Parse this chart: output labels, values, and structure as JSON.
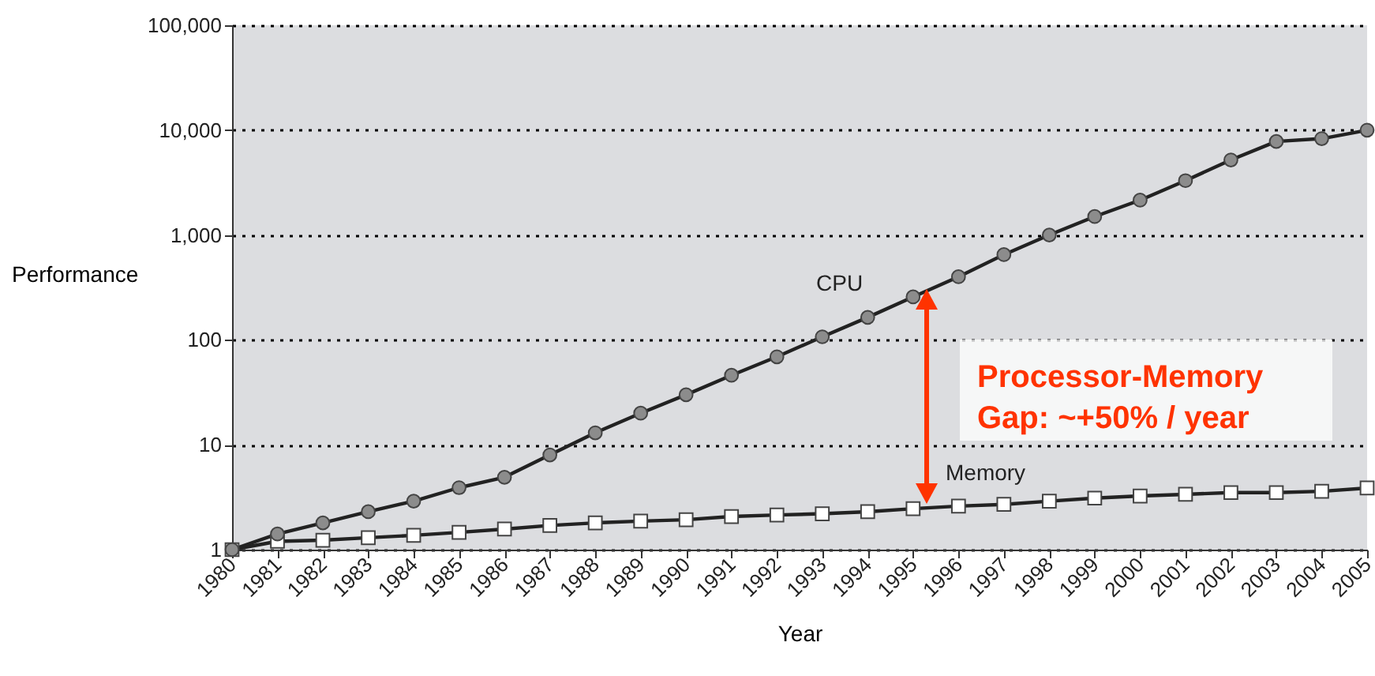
{
  "chart_data": {
    "type": "line",
    "xlabel": "Year",
    "ylabel": "Performance",
    "categories": [
      "1980",
      "1981",
      "1982",
      "1983",
      "1984",
      "1985",
      "1986",
      "1987",
      "1988",
      "1989",
      "1990",
      "1991",
      "1992",
      "1993",
      "1994",
      "1995",
      "1996",
      "1997",
      "1998",
      "1999",
      "2000",
      "2001",
      "2002",
      "2003",
      "2004",
      "2005"
    ],
    "series": [
      {
        "name": "CPU",
        "color": "#8c8c8c",
        "marker": "circle",
        "values": [
          1,
          1.41,
          1.8,
          2.3,
          2.9,
          3.9,
          4.9,
          8,
          13,
          20,
          30,
          46,
          69,
          107,
          164,
          257,
          400,
          650,
          1000,
          1500,
          2150,
          3300,
          5200,
          7800,
          8300,
          10000
        ]
      },
      {
        "name": "Memory",
        "color": "#ffffff",
        "marker": "square",
        "values": [
          1,
          1.2,
          1.23,
          1.3,
          1.37,
          1.46,
          1.57,
          1.7,
          1.8,
          1.87,
          1.93,
          2.07,
          2.14,
          2.2,
          2.3,
          2.46,
          2.6,
          2.7,
          2.9,
          3.1,
          3.25,
          3.37,
          3.5,
          3.5,
          3.6,
          3.87
        ]
      }
    ],
    "log": "y",
    "ylim": [
      1,
      100000
    ],
    "yticks": [
      1,
      10,
      100,
      {
        "value": 1000,
        "label": "1,000"
      },
      {
        "value": 10000,
        "label": "10,000"
      },
      {
        "value": 100000,
        "label": "100,000"
      }
    ],
    "grid": "y",
    "line_style": "solid",
    "annotations": [
      "Processor-Memory\nGap: ~+50% / year"
    ]
  }
}
